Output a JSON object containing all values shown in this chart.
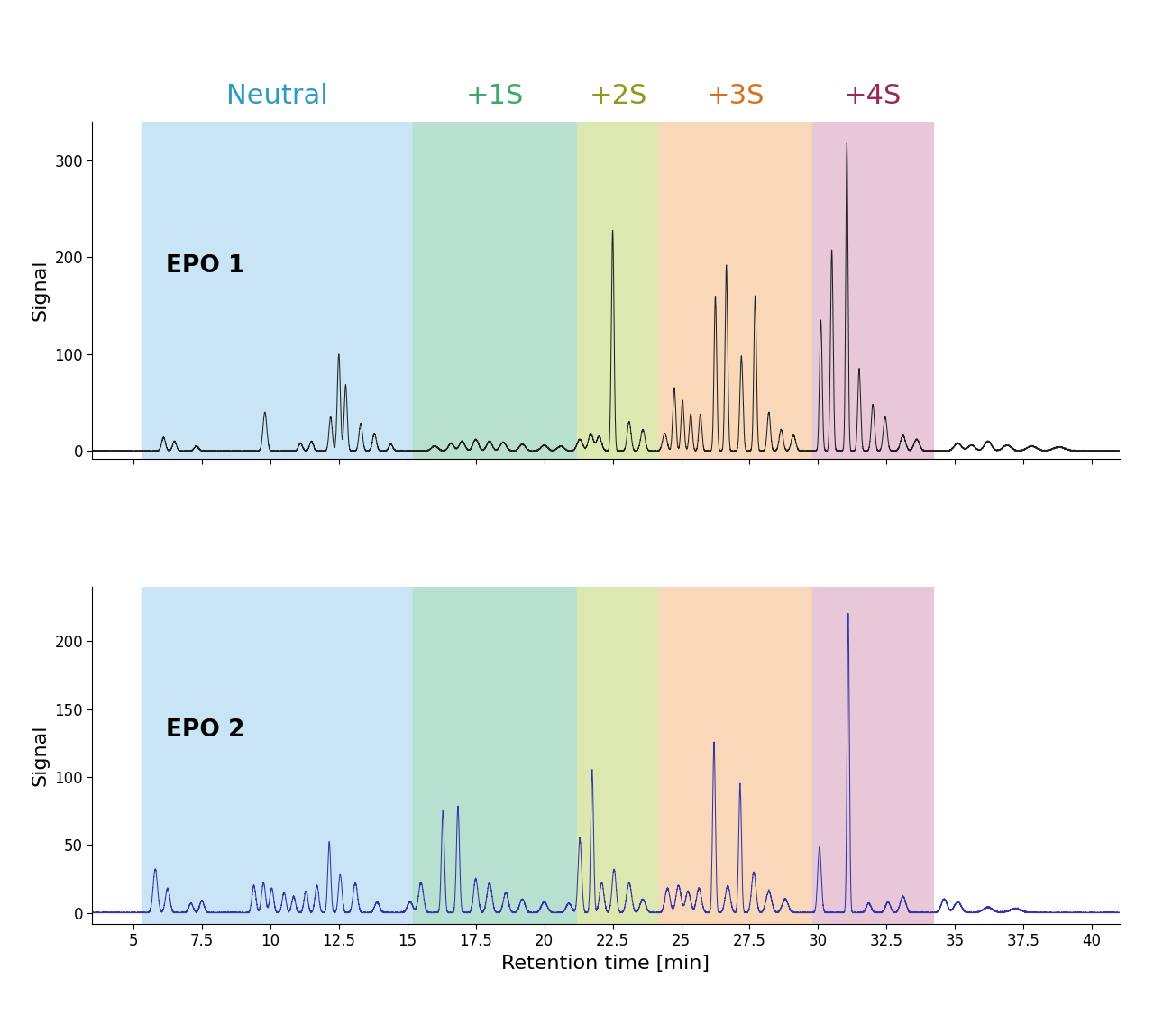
{
  "title": "",
  "xlabel": "Retention time [min]",
  "ylabel": "Signal",
  "xlim": [
    3.5,
    41
  ],
  "epo1_ylim": [
    -8,
    340
  ],
  "epo2_ylim": [
    -8,
    240
  ],
  "epo1_yticks": [
    0,
    100,
    200,
    300
  ],
  "epo2_yticks": [
    0,
    50,
    100,
    150,
    200
  ],
  "xticks": [
    5,
    7.5,
    10,
    12.5,
    15,
    17.5,
    20,
    22.5,
    25,
    27.5,
    30,
    32.5,
    35,
    37.5,
    40
  ],
  "xticklabels": [
    "5",
    "7.5",
    "10",
    "12.5",
    "15",
    "17.5",
    "20",
    "22.5",
    "25",
    "27.5",
    "30",
    "32.5",
    "35",
    "37.5",
    "40"
  ],
  "regions": [
    {
      "label": "Neutral",
      "xmin": 5.3,
      "xmax": 15.2,
      "color": "#c8e4f5",
      "label_color": "#2b9bbf"
    },
    {
      "label": "+1S",
      "xmin": 15.2,
      "xmax": 21.2,
      "color": "#b8e0d0",
      "label_color": "#3aaa6a"
    },
    {
      "label": "+2S",
      "xmin": 21.2,
      "xmax": 24.2,
      "color": "#dde8b0",
      "label_color": "#909820"
    },
    {
      "label": "+3S",
      "xmin": 24.2,
      "xmax": 29.8,
      "color": "#f8d8b8",
      "label_color": "#d87020"
    },
    {
      "label": "+4S",
      "xmin": 29.8,
      "xmax": 34.2,
      "color": "#e8c8d8",
      "label_color": "#982858"
    }
  ],
  "epo1_color": "#222222",
  "epo2_color": "#3535aa",
  "epo1_label": "EPO 1",
  "epo2_label": "EPO 2",
  "label_fontsize": 16,
  "tick_fontsize": 12,
  "region_label_fontsize": 22
}
